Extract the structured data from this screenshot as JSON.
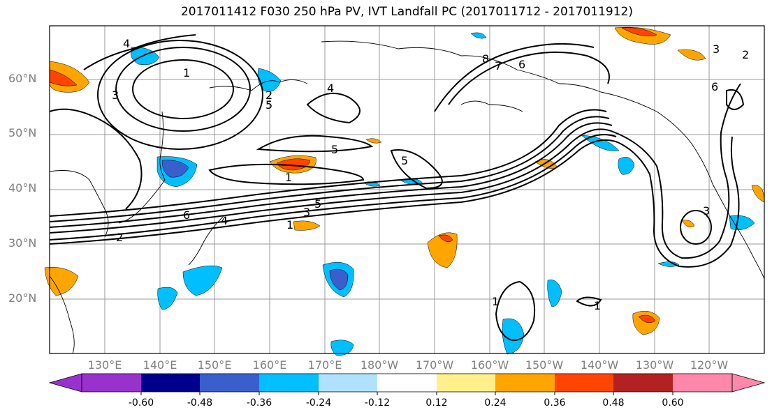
{
  "title": "2017011412 F030 250 hPa PV, IVT Landfall PC (2017011712 - 2017011912)",
  "lat_labels": [
    "60°N",
    "50°N",
    "40°N",
    "30°N",
    "20°N"
  ],
  "lon_labels": [
    "130°E",
    "140°E",
    "150°E",
    "160°E",
    "170°E",
    "180°W",
    "170°W",
    "160°W",
    "150°W",
    "140°W",
    "130°W",
    "120°W"
  ],
  "colorbar": {
    "colors": [
      "#9932cc",
      "#00008b",
      "#3a5fcd",
      "#00bfff",
      "#b0e2ff",
      "#ffffff",
      "#fff08c",
      "#ffa500",
      "#ff4500",
      "#b22222",
      "#ff88aa"
    ],
    "tick_labels": [
      "-0.60",
      "-0.48",
      "-0.36",
      "-0.24",
      "-0.12",
      "0.12",
      "0.24",
      "0.36",
      "0.48",
      "0.60"
    ],
    "range": [
      -0.6,
      0.6
    ],
    "extend": "both"
  },
  "contour_labels": [
    "4",
    "1",
    "3",
    "5",
    "2",
    "4",
    "5",
    "5",
    "1",
    "6",
    "4",
    "3",
    "5",
    "1",
    "2",
    "8",
    "7",
    "6",
    "3",
    "2",
    "6",
    "3",
    "1",
    "1"
  ]
}
